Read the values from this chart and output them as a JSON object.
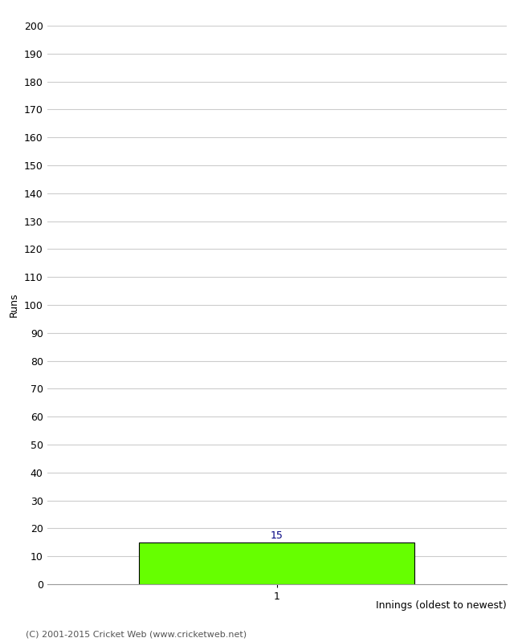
{
  "ylabel": "Runs",
  "xlabel": "Innings (oldest to newest)",
  "bar_values": [
    15
  ],
  "bar_positions": [
    1
  ],
  "bar_color": "#66ff00",
  "bar_edgecolor": "#000000",
  "bar_label_color": "#000080",
  "ylim": [
    0,
    200
  ],
  "yticks": [
    0,
    10,
    20,
    30,
    40,
    50,
    60,
    70,
    80,
    90,
    100,
    110,
    120,
    130,
    140,
    150,
    160,
    170,
    180,
    190,
    200
  ],
  "xtick_labels": [
    "1"
  ],
  "xtick_positions": [
    1
  ],
  "footer_text": "(C) 2001-2015 Cricket Web (www.cricketweb.net)",
  "background_color": "#ffffff",
  "grid_color": "#cccccc",
  "bar_width": 0.6,
  "xlim": [
    0.5,
    1.5
  ]
}
